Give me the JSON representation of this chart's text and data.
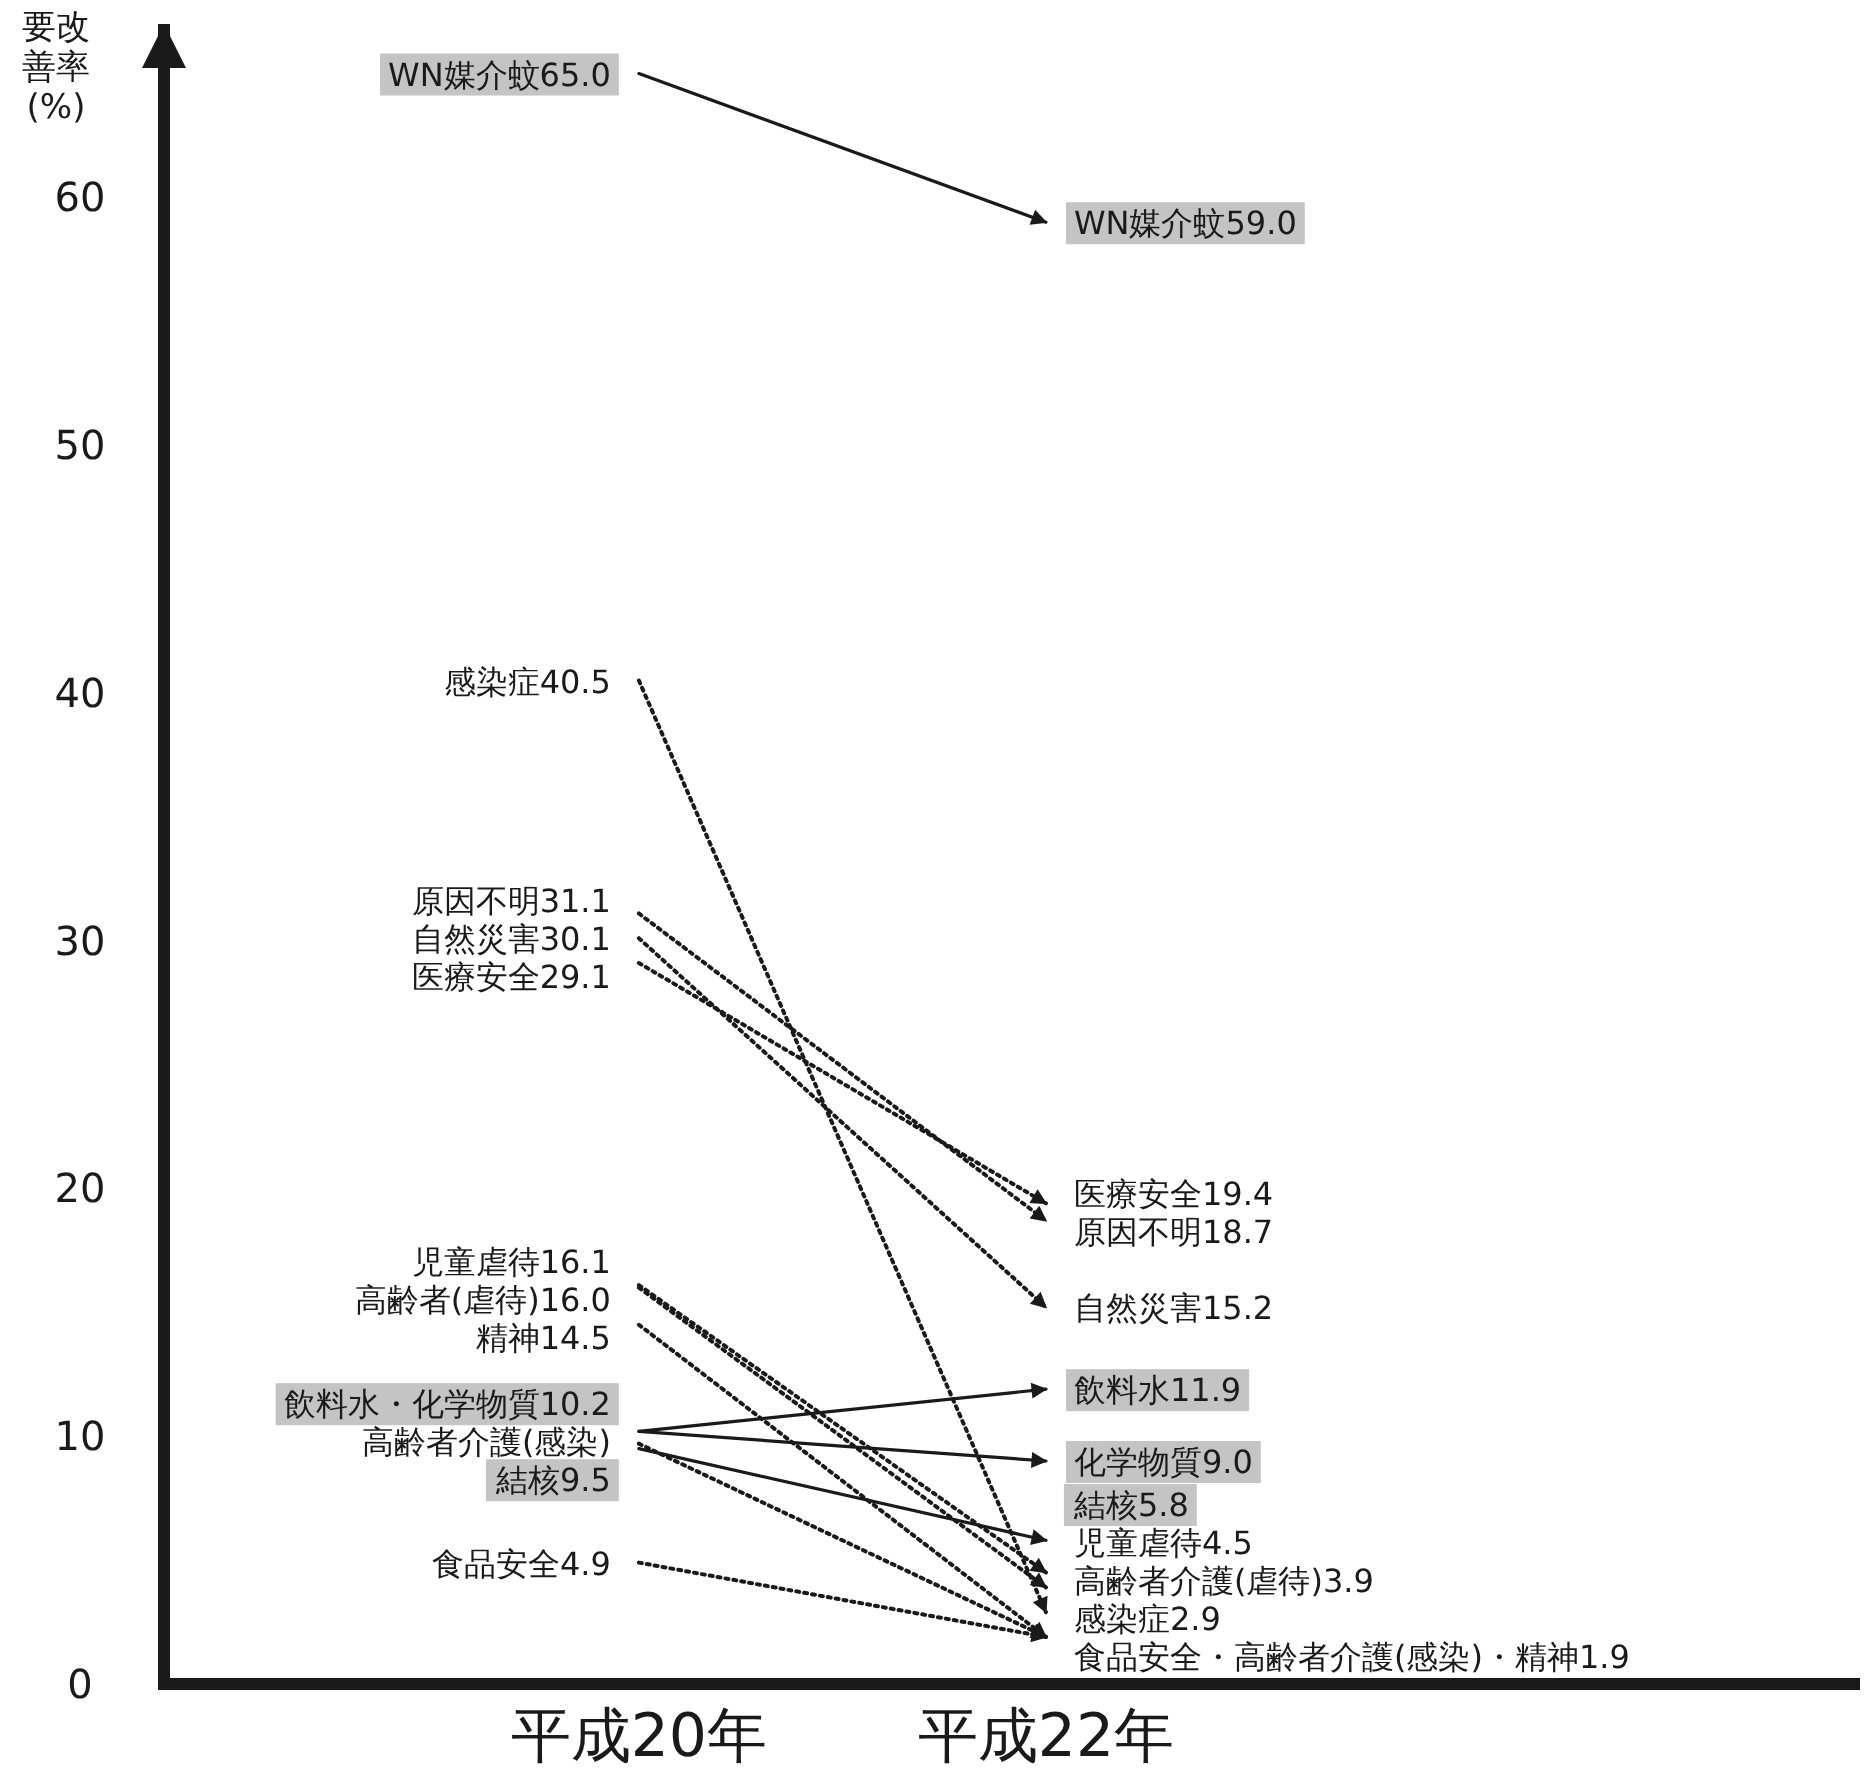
{
  "chart_data": {
    "type": "line",
    "ylabel": "要改善率(%)",
    "categories": [
      "平成20年",
      "平成22年"
    ],
    "ylim": [
      0,
      67
    ],
    "yticks": [
      0,
      10,
      20,
      30,
      40,
      50,
      60
    ],
    "grid": false,
    "series": [
      {
        "color": "#1a1a1a",
        "line_style": "solid",
        "values": [
          65.0,
          59.0
        ],
        "value_labels": [
          "WN媒介蚊65.0",
          "WN媒介蚊59.0"
        ]
      },
      {
        "color": "#1a1a1a",
        "line_style": "dotted",
        "values": [
          40.5,
          2.9
        ],
        "value_labels": [
          "感染症40.5",
          "感染症2.9"
        ]
      },
      {
        "color": "#1a1a1a",
        "line_style": "dotted",
        "values": [
          31.1,
          18.7
        ],
        "value_labels": [
          "原因不明31.1",
          "原因不明18.7"
        ]
      },
      {
        "color": "#1a1a1a",
        "line_style": "dotted",
        "values": [
          30.1,
          15.2
        ],
        "value_labels": [
          "自然災害30.1",
          "自然災害15.2"
        ]
      },
      {
        "color": "#1a1a1a",
        "line_style": "dotted",
        "values": [
          29.1,
          19.4
        ],
        "value_labels": [
          "医療安全29.1",
          "医療安全19.4"
        ]
      },
      {
        "color": "#1a1a1a",
        "line_style": "dotted",
        "values": [
          16.1,
          4.5
        ],
        "value_labels": [
          "児童虐待16.1",
          "児童虐待4.5"
        ]
      },
      {
        "color": "#1a1a1a",
        "line_style": "dotted",
        "values": [
          16.0,
          3.9
        ],
        "value_labels": [
          "高齢者(虐待)16.0",
          "高齢者介護(虐待)3.9"
        ]
      },
      {
        "color": "#1a1a1a",
        "line_style": "dotted",
        "values": [
          14.5,
          1.9
        ],
        "value_labels": [
          "精神14.5",
          null
        ]
      },
      {
        "color": "#1a1a1a",
        "line_style": "solid",
        "values": [
          10.2,
          11.9
        ],
        "value_labels": [
          "飲料水・化学物質10.2",
          "飲料水11.9"
        ]
      },
      {
        "color": "#1a1a1a",
        "line_style": "solid",
        "values": [
          10.2,
          9.0
        ],
        "value_labels": [
          null,
          "化学物質9.0"
        ]
      },
      {
        "color": "#1a1a1a",
        "line_style": "dotted",
        "values": [
          9.7,
          1.9
        ],
        "value_labels": [
          "高齢者介護(感染)",
          null
        ]
      },
      {
        "color": "#1a1a1a",
        "line_style": "solid",
        "values": [
          9.5,
          5.8
        ],
        "value_labels": [
          "結核9.5",
          "結核5.8"
        ]
      },
      {
        "color": "#1a1a1a",
        "line_style": "dotted",
        "values": [
          4.9,
          1.9
        ],
        "value_labels": [
          "食品安全4.9",
          "食品安全・高齢者介護(感染)・精神1.9"
        ]
      }
    ]
  }
}
